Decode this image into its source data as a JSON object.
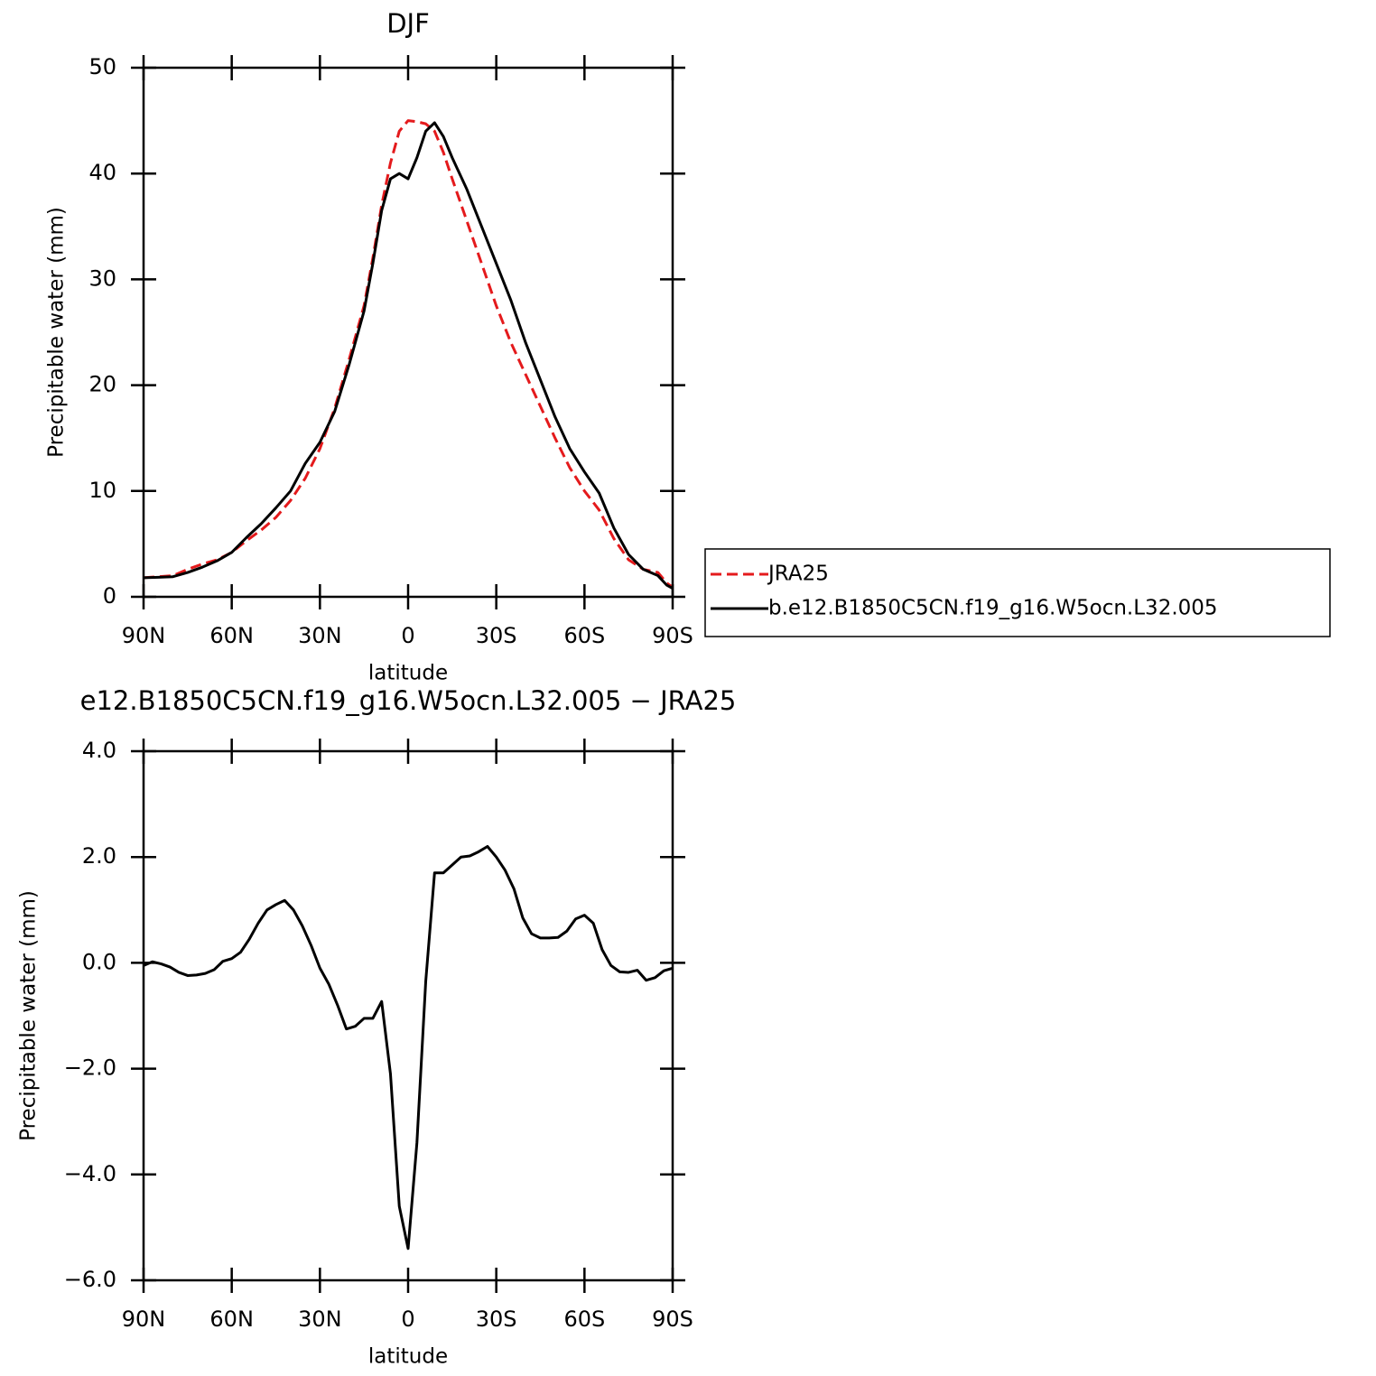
{
  "chart_data": [
    {
      "type": "line",
      "title": "DJF",
      "xlabel": "latitude",
      "ylabel": "Precipitable water (mm)",
      "x": [
        90,
        85,
        80,
        75,
        70,
        65,
        60,
        55,
        50,
        45,
        40,
        35,
        30,
        25,
        20,
        15,
        12,
        9,
        6,
        3,
        0,
        -3,
        -6,
        -9,
        -12,
        -15,
        -20,
        -25,
        -30,
        -35,
        -40,
        -45,
        -50,
        -55,
        -60,
        -65,
        -70,
        -75,
        -80,
        -85,
        -88,
        -90
      ],
      "series": [
        {
          "name": "JRA25",
          "color": "#e41a1c",
          "style": "dashed",
          "values": [
            1.8,
            1.9,
            2.0,
            2.6,
            3.1,
            3.5,
            4.2,
            5.3,
            6.3,
            7.5,
            9.1,
            11.2,
            14.0,
            17.8,
            22.5,
            27.5,
            32.0,
            37.0,
            41.0,
            44.0,
            45.0,
            44.9,
            44.7,
            44.0,
            42.0,
            39.5,
            35.5,
            31.5,
            27.5,
            24.0,
            21.0,
            18.0,
            15.0,
            12.2,
            10.0,
            8.2,
            5.5,
            3.5,
            2.6,
            2.3,
            1.3,
            0.9
          ]
        },
        {
          "name": "b.e12.B1850C5CN.f19_g16.W5ocn.L32.005",
          "color": "#000000",
          "style": "solid",
          "values": [
            1.8,
            1.85,
            1.9,
            2.3,
            2.8,
            3.4,
            4.2,
            5.6,
            6.9,
            8.4,
            10.0,
            12.6,
            14.6,
            17.5,
            22.0,
            27.0,
            31.5,
            36.5,
            39.5,
            40.0,
            39.5,
            41.5,
            44.0,
            44.8,
            43.5,
            41.5,
            38.5,
            35.0,
            31.5,
            28.0,
            24.0,
            20.5,
            17.0,
            14.0,
            11.8,
            9.8,
            6.5,
            4.0,
            2.6,
            2.0,
            1.1,
            0.8
          ]
        }
      ],
      "xlim": [
        90,
        -90
      ],
      "xticks": [
        {
          "value": 90,
          "label": "90N"
        },
        {
          "value": 60,
          "label": "60N"
        },
        {
          "value": 30,
          "label": "30N"
        },
        0,
        {
          "value": -30,
          "label": "30S"
        },
        {
          "value": -60,
          "label": "60S"
        },
        {
          "value": -90,
          "label": "90S"
        }
      ],
      "ylim": [
        0,
        50
      ],
      "yticks": [
        0,
        10,
        20,
        30,
        40,
        50
      ],
      "legend": "right"
    },
    {
      "type": "line",
      "title": "e12.B1850C5CN.f19_g16.W5ocn.L32.005 − JRA25",
      "xlabel": "latitude",
      "ylabel": "Precipitable water (mm)",
      "x": [
        90,
        87,
        84,
        81,
        78,
        75,
        72,
        69,
        66,
        63,
        60,
        57,
        54,
        51,
        48,
        45,
        42,
        39,
        36,
        33,
        30,
        27,
        24,
        21,
        18,
        15,
        12,
        9,
        6,
        3,
        0,
        -3,
        -6,
        -9,
        -12,
        -15,
        -18,
        -21,
        -24,
        -27,
        -30,
        -33,
        -36,
        -39,
        -42,
        -45,
        -48,
        -51,
        -54,
        -57,
        -60,
        -63,
        -66,
        -69,
        -72,
        -75,
        -78,
        -81,
        -84,
        -87,
        -90
      ],
      "series": [
        {
          "color": "#000000",
          "style": "solid",
          "values": [
            -0.05,
            0.02,
            -0.02,
            -0.08,
            -0.18,
            -0.24,
            -0.23,
            -0.2,
            -0.13,
            0.03,
            0.08,
            0.2,
            0.45,
            0.75,
            1.0,
            1.1,
            1.18,
            1.0,
            0.7,
            0.33,
            -0.1,
            -0.4,
            -0.8,
            -1.25,
            -1.2,
            -1.05,
            -1.05,
            -0.73,
            -2.1,
            -4.6,
            -5.4,
            -3.4,
            -0.35,
            1.7,
            1.7,
            1.85,
            2.0,
            2.02,
            2.1,
            2.2,
            2.0,
            1.75,
            1.4,
            0.85,
            0.55,
            0.47,
            0.47,
            0.48,
            0.6,
            0.83,
            0.9,
            0.75,
            0.25,
            -0.05,
            -0.17,
            -0.18,
            -0.14,
            -0.33,
            -0.28,
            -0.15,
            -0.1
          ]
        }
      ],
      "xlim": [
        90,
        -90
      ],
      "xticks": [
        {
          "value": 90,
          "label": "90N"
        },
        {
          "value": 60,
          "label": "60N"
        },
        {
          "value": 30,
          "label": "30N"
        },
        0,
        {
          "value": -30,
          "label": "30S"
        },
        {
          "value": -60,
          "label": "60S"
        },
        {
          "value": -90,
          "label": "90S"
        }
      ],
      "ylim": [
        -6,
        4
      ],
      "yticks": [
        {
          "value": -6,
          "label": "−6.0"
        },
        {
          "value": -4,
          "label": "−4.0"
        },
        {
          "value": -2,
          "label": "−2.0"
        },
        {
          "value": 0,
          "label": "0.0"
        },
        {
          "value": 2,
          "label": "2.0"
        },
        {
          "value": 4,
          "label": "4.0"
        }
      ]
    }
  ]
}
